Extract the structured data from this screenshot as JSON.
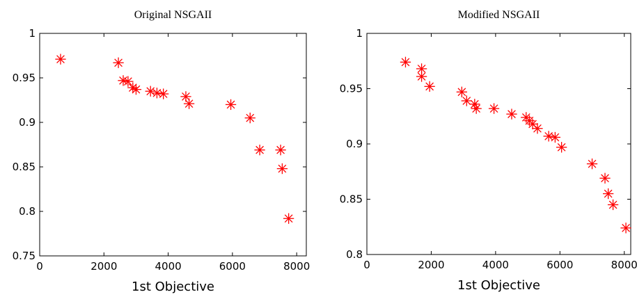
{
  "chart_data": [
    {
      "type": "scatter",
      "title": "Original NSGAII",
      "xlabel": "1st Objective",
      "ylabel": "",
      "xlim": [
        0,
        8300
      ],
      "ylim": [
        0.75,
        1.0
      ],
      "xticks": [
        0,
        2000,
        4000,
        6000,
        8000
      ],
      "yticks": [
        0.75,
        0.8,
        0.85,
        0.9,
        0.95,
        1
      ],
      "xtick_labels": [
        "0",
        "2000",
        "4000",
        "6000",
        "8000"
      ],
      "ytick_labels": [
        "0.75",
        "0.8",
        "0.85",
        "0.9",
        "0.95",
        "1"
      ],
      "grid": false,
      "marker": "asterisk",
      "color": "#ff0000",
      "points": [
        {
          "x": 650,
          "y": 0.971
        },
        {
          "x": 2450,
          "y": 0.967
        },
        {
          "x": 2600,
          "y": 0.947
        },
        {
          "x": 2750,
          "y": 0.946
        },
        {
          "x": 2900,
          "y": 0.939
        },
        {
          "x": 3000,
          "y": 0.937
        },
        {
          "x": 3450,
          "y": 0.935
        },
        {
          "x": 3650,
          "y": 0.933
        },
        {
          "x": 3850,
          "y": 0.932
        },
        {
          "x": 4550,
          "y": 0.929
        },
        {
          "x": 4650,
          "y": 0.921
        },
        {
          "x": 5950,
          "y": 0.92
        },
        {
          "x": 6550,
          "y": 0.905
        },
        {
          "x": 6850,
          "y": 0.869
        },
        {
          "x": 7500,
          "y": 0.869
        },
        {
          "x": 7550,
          "y": 0.848
        },
        {
          "x": 7750,
          "y": 0.792
        }
      ]
    },
    {
      "type": "scatter",
      "title": "Modified NSGAII",
      "xlabel": "1st Objective",
      "ylabel": "",
      "xlim": [
        0,
        8200
      ],
      "ylim": [
        0.8,
        1.0
      ],
      "xticks": [
        0,
        2000,
        4000,
        6000,
        8000
      ],
      "yticks": [
        0.8,
        0.85,
        0.9,
        0.95,
        1
      ],
      "xtick_labels": [
        "0",
        "2000",
        "4000",
        "6000",
        "8000"
      ],
      "ytick_labels": [
        "0.8",
        "0.85",
        "0.9",
        "0.95",
        "1"
      ],
      "grid": false,
      "marker": "asterisk",
      "color": "#ff0000",
      "points": [
        {
          "x": 1200,
          "y": 0.974
        },
        {
          "x": 1700,
          "y": 0.968
        },
        {
          "x": 1700,
          "y": 0.961
        },
        {
          "x": 1950,
          "y": 0.952
        },
        {
          "x": 2950,
          "y": 0.947
        },
        {
          "x": 3100,
          "y": 0.939
        },
        {
          "x": 3350,
          "y": 0.936
        },
        {
          "x": 3400,
          "y": 0.932
        },
        {
          "x": 3950,
          "y": 0.932
        },
        {
          "x": 4500,
          "y": 0.927
        },
        {
          "x": 4950,
          "y": 0.924
        },
        {
          "x": 5050,
          "y": 0.921
        },
        {
          "x": 5150,
          "y": 0.918
        },
        {
          "x": 5300,
          "y": 0.914
        },
        {
          "x": 5650,
          "y": 0.907
        },
        {
          "x": 5850,
          "y": 0.906
        },
        {
          "x": 6050,
          "y": 0.897
        },
        {
          "x": 7000,
          "y": 0.882
        },
        {
          "x": 7400,
          "y": 0.869
        },
        {
          "x": 7500,
          "y": 0.855
        },
        {
          "x": 7650,
          "y": 0.845
        },
        {
          "x": 8050,
          "y": 0.824
        }
      ]
    }
  ]
}
